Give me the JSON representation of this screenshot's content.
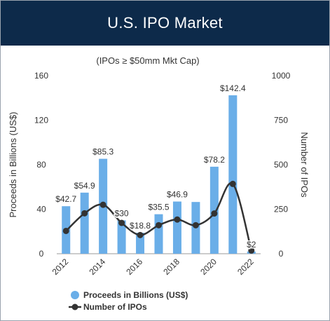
{
  "header": {
    "title": "U.S. IPO Market"
  },
  "colors": {
    "banner": "#0d2a4a",
    "bars": "#6aaee8",
    "line": "#333333"
  },
  "chart_data": {
    "type": "bar+line",
    "subtitle": "(IPOs ≥ $50mm Mkt Cap)",
    "ylabel": "Proceeds in Billions (US$)",
    "y2label": "Number of IPOs",
    "ylim": [
      0,
      160
    ],
    "y2lim": [
      0,
      1000
    ],
    "yticks": [
      0,
      40,
      80,
      120,
      160
    ],
    "y2ticks": [
      0,
      250,
      500,
      750,
      1000
    ],
    "xlim": [
      2011.5,
      2022.5
    ],
    "xticks": [
      "2012",
      "2014",
      "2016",
      "2018",
      "2020",
      "2022"
    ],
    "categories": [
      2012,
      2013,
      2014,
      2015,
      2016,
      2017,
      2018,
      2019,
      2020,
      2021,
      2022
    ],
    "series": [
      {
        "name": "Proceeds in Billions (US$)",
        "type": "bar",
        "axis": "left",
        "values": [
          42.7,
          54.9,
          85.3,
          30,
          18.8,
          35.5,
          46.9,
          46.5,
          78.2,
          142.4,
          2
        ]
      },
      {
        "name": "Number of IPOs",
        "type": "line",
        "axis": "right",
        "values": [
          128,
          227,
          275,
          173,
          105,
          160,
          192,
          160,
          226,
          392,
          18
        ]
      }
    ],
    "data_labels": [
      {
        "category": 2012,
        "text": "$42.7"
      },
      {
        "category": 2013,
        "text": "$54.9"
      },
      {
        "category": 2014,
        "text": "$85.3"
      },
      {
        "category": 2015,
        "text": "$30"
      },
      {
        "category": 2016,
        "text": "$18.8"
      },
      {
        "category": 2017,
        "text": "$35.5"
      },
      {
        "category": 2018,
        "text": "$46.9"
      },
      {
        "category": 2020,
        "text": "$78.2"
      },
      {
        "category": 2021,
        "text": "$142.4"
      },
      {
        "category": 2022,
        "text": "$2"
      }
    ],
    "legend": {
      "placement": "bottom"
    }
  }
}
